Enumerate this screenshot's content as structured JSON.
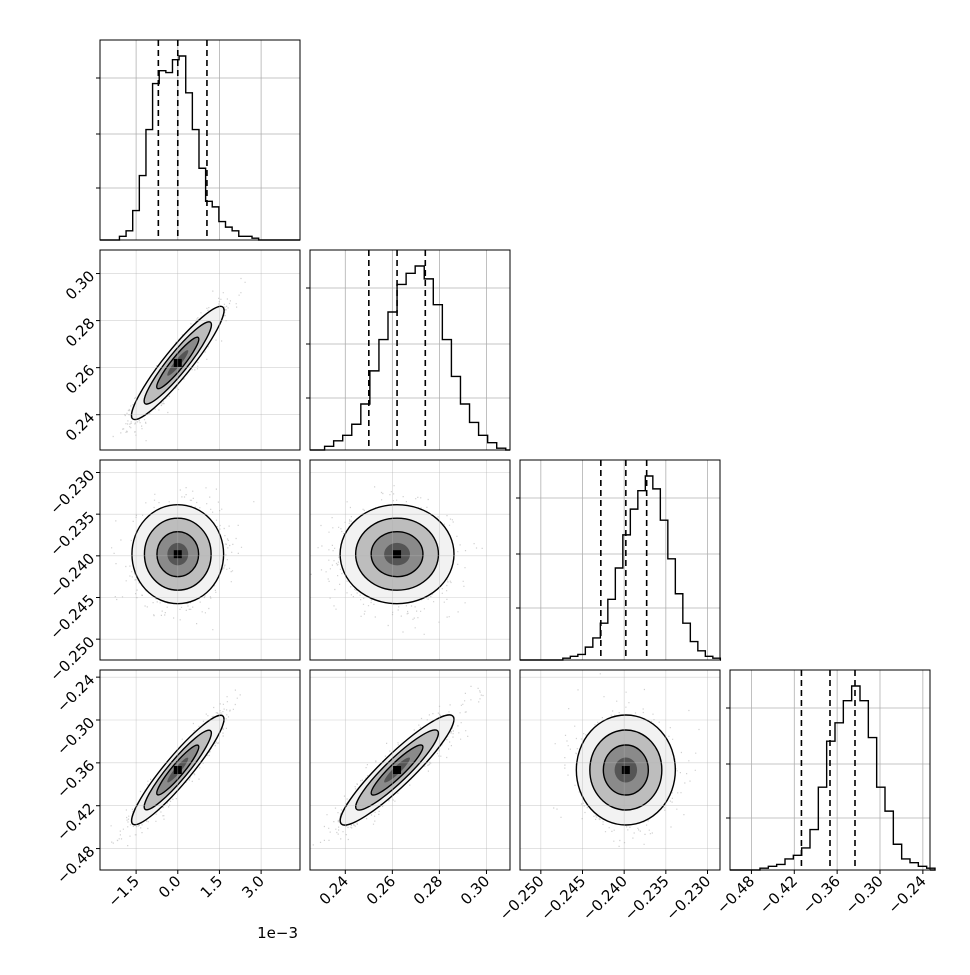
{
  "chart_data": {
    "type": "corner",
    "grid": true,
    "params": [
      {
        "range": [
          -2.8,
          4.4
        ],
        "ticks": [
          -1.5,
          0.0,
          1.5,
          3.0
        ],
        "tick_labels": [
          "−1.5",
          "0.0",
          "1.5",
          "3.0"
        ],
        "offset_label": "1e−3",
        "quantiles": [
          -0.7,
          0.0,
          1.05
        ],
        "mean": 0.0,
        "sd": 0.75,
        "hist": [
          0.02,
          0.05,
          0.16,
          0.35,
          0.6,
          0.85,
          0.92,
          0.91,
          0.98,
          1.0,
          0.8,
          0.6,
          0.39,
          0.21,
          0.18,
          0.1,
          0.07,
          0.05,
          0.02,
          0.02,
          0.01,
          0.0
        ]
      },
      {
        "range": [
          0.225,
          0.31
        ],
        "ticks": [
          0.24,
          0.26,
          0.28,
          0.3
        ],
        "tick_labels": [
          "0.24",
          "0.26",
          "0.28",
          "0.30"
        ],
        "quantiles": [
          0.25,
          0.262,
          0.274
        ],
        "mean": 0.262,
        "sd": 0.011,
        "hist": [
          0.02,
          0.05,
          0.08,
          0.14,
          0.25,
          0.43,
          0.6,
          0.75,
          0.9,
          0.96,
          1.0,
          0.93,
          0.79,
          0.6,
          0.4,
          0.25,
          0.15,
          0.08,
          0.04,
          0.01
        ]
      },
      {
        "range": [
          -0.2525,
          -0.2285
        ],
        "ticks": [
          -0.25,
          -0.245,
          -0.24,
          -0.235,
          -0.23
        ],
        "tick_labels": [
          "−0.250",
          "−0.245",
          "−0.240",
          "−0.235",
          "−0.230"
        ],
        "quantiles": [
          -0.2428,
          -0.2398,
          -0.2373
        ],
        "mean": -0.2398,
        "sd": 0.0027,
        "hist": [
          0.01,
          0.02,
          0.03,
          0.07,
          0.12,
          0.2,
          0.33,
          0.5,
          0.68,
          0.82,
          0.92,
          1.0,
          0.93,
          0.76,
          0.55,
          0.36,
          0.2,
          0.1,
          0.05,
          0.02,
          0.01
        ]
      },
      {
        "range": [
          -0.51,
          -0.23
        ],
        "ticks": [
          -0.48,
          -0.42,
          -0.36,
          -0.3,
          -0.24
        ],
        "tick_labels": [
          "−0.48",
          "−0.42",
          "−0.36",
          "−0.30",
          "−0.24"
        ],
        "quantiles": [
          -0.41,
          -0.37,
          -0.335
        ],
        "mean": -0.37,
        "sd": 0.035,
        "hist": [
          0.01,
          0.02,
          0.03,
          0.06,
          0.08,
          0.12,
          0.22,
          0.45,
          0.7,
          0.8,
          0.92,
          1.0,
          0.92,
          0.72,
          0.45,
          0.32,
          0.14,
          0.06,
          0.04,
          0.02,
          0.01
        ]
      }
    ],
    "correlations": [
      [
        0,
        1,
        0.93
      ],
      [
        0,
        2,
        0.05
      ],
      [
        0,
        3,
        0.93
      ],
      [
        1,
        2,
        -0.02
      ],
      [
        1,
        3,
        0.92
      ],
      [
        2,
        3,
        -0.02
      ]
    ]
  }
}
